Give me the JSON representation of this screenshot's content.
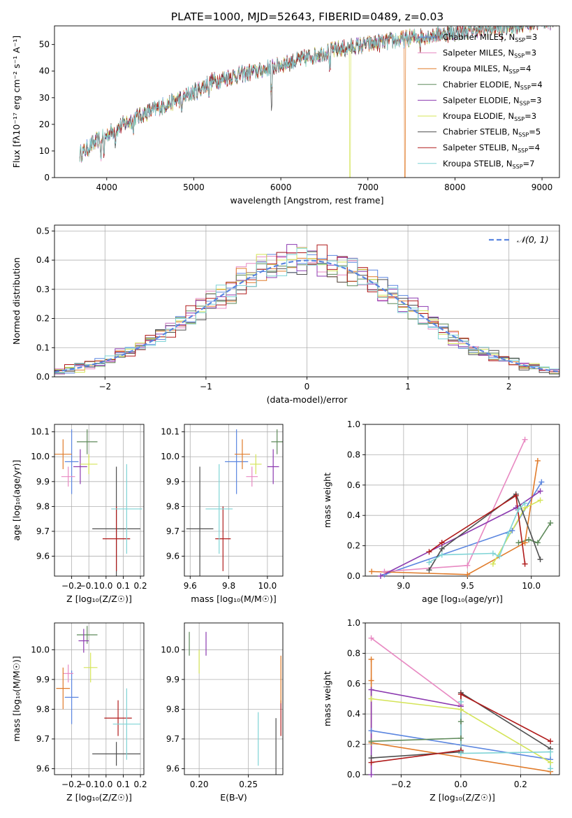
{
  "figure": {
    "title": "PLATE=1000, MJD=52643, FIBERID=0489, z=0.03"
  },
  "colors": {
    "Chabrier MILES": "#5b86e0",
    "Salpeter MILES": "#e889c2",
    "Kroupa MILES": "#e07b2a",
    "Chabrier ELODIE": "#5e8a5a",
    "Salpeter ELODIE": "#8c3ab0",
    "Kroupa ELODIE": "#d4e457",
    "Chabrier STELIB": "#4f4f4f",
    "Salpeter STELIB": "#b01b1b",
    "Kroupa STELIB": "#7fd4d6"
  },
  "chart_data": [
    {
      "id": "spectrum",
      "type": "line",
      "xlabel": "wavelength [Angstrom, rest frame]",
      "ylabel": "Flux [fλ10⁻¹⁷ erg cm⁻² s⁻¹ A⁻¹]",
      "xlim": [
        3400,
        9200
      ],
      "ylim": [
        0,
        57
      ],
      "xticks": [
        4000,
        5000,
        6000,
        7000,
        8000,
        9000
      ],
      "yticks": [
        0,
        10,
        20,
        30,
        40,
        50
      ],
      "grid": false,
      "legend_position": "top-right",
      "continuum": {
        "x": [
          3700,
          3900,
          4050,
          4300,
          4500,
          4800,
          5000,
          5200,
          5500,
          5800,
          6000,
          6300,
          6500,
          6800,
          7000,
          7300,
          7600,
          8000,
          8400,
          8800,
          9000
        ],
        "y": [
          9,
          14,
          17,
          22,
          25,
          29,
          32,
          36,
          38.5,
          40.5,
          42.5,
          45,
          47,
          49,
          50,
          51.5,
          53,
          54.5,
          56,
          57.5,
          59
        ]
      },
      "series": [
        {
          "name": "Chabrier MILES",
          "label": "Chabrier MILES, N",
          "sub": "SSP",
          "suffix": "=3",
          "color": "#5b86e0"
        },
        {
          "name": "Salpeter MILES",
          "label": "Salpeter MILES, N",
          "sub": "SSP",
          "suffix": "=3",
          "color": "#e889c2"
        },
        {
          "name": "Kroupa MILES",
          "label": "Kroupa MILES, N",
          "sub": "SSP",
          "suffix": "=4",
          "color": "#e07b2a"
        },
        {
          "name": "Chabrier ELODIE",
          "label": "Chabrier ELODIE, N",
          "sub": "SSP",
          "suffix": "=4",
          "color": "#5e8a5a"
        },
        {
          "name": "Salpeter ELODIE",
          "label": "Salpeter ELODIE, N",
          "sub": "SSP",
          "suffix": "=3",
          "color": "#8c3ab0"
        },
        {
          "name": "Kroupa ELODIE",
          "label": "Kroupa ELODIE, N",
          "sub": "SSP",
          "suffix": "=3",
          "color": "#d4e457"
        },
        {
          "name": "Chabrier STELIB",
          "label": "Chabrier STELIB, N",
          "sub": "SSP",
          "suffix": "=5",
          "color": "#4f4f4f"
        },
        {
          "name": "Salpeter STELIB",
          "label": "Salpeter STELIB, N",
          "sub": "SSP",
          "suffix": "=4",
          "color": "#b01b1b"
        },
        {
          "name": "Kroupa STELIB",
          "label": "Kroupa STELIB, N",
          "sub": "SSP",
          "suffix": "=7",
          "color": "#7fd4d6"
        }
      ]
    },
    {
      "id": "residuals",
      "type": "histogram",
      "xlabel": "(data-model)/error",
      "ylabel": "Normed distribution",
      "xlim": [
        -2.5,
        2.5
      ],
      "ylim": [
        0,
        0.52
      ],
      "xticks": [
        -2,
        -1,
        0,
        1,
        2
      ],
      "yticks": [
        0.0,
        0.1,
        0.2,
        0.3,
        0.4,
        0.5
      ],
      "grid": true,
      "legend_position": "top-right",
      "reference_curve": {
        "label": "𝒩(0, 1)",
        "mean": 0,
        "sigma": 1,
        "color": "#5b86e0"
      },
      "bins": {
        "start": -2.5,
        "width": 0.1,
        "count": 50
      }
    },
    {
      "id": "age-vs-Z",
      "type": "scatter",
      "xlabel": "Z [log₁₀(Z/Z☉)]",
      "ylabel": "age  [log₁₀(age/yr)]",
      "xlim": [
        -0.3,
        0.22
      ],
      "ylim": [
        9.52,
        10.13
      ],
      "xticks": [
        -0.2,
        -0.1,
        0.0,
        0.1,
        0.2
      ],
      "yticks": [
        9.6,
        9.7,
        9.8,
        9.9,
        10.0,
        10.1
      ],
      "grid": true,
      "points": [
        {
          "series": "Chabrier MILES",
          "x": -0.2,
          "y": 9.98,
          "xerr": 0.04,
          "yerr": 0.13
        },
        {
          "series": "Salpeter MILES",
          "x": -0.22,
          "y": 9.92,
          "xerr": 0.04,
          "yerr": 0.04
        },
        {
          "series": "Kroupa MILES",
          "x": -0.25,
          "y": 10.01,
          "xerr": 0.05,
          "yerr": 0.06
        },
        {
          "series": "Chabrier ELODIE",
          "x": -0.11,
          "y": 10.06,
          "xerr": 0.06,
          "yerr": 0.05
        },
        {
          "series": "Salpeter ELODIE",
          "x": -0.15,
          "y": 9.96,
          "xerr": 0.04,
          "yerr": 0.07
        },
        {
          "series": "Kroupa ELODIE",
          "x": -0.1,
          "y": 9.97,
          "xerr": 0.05,
          "yerr": 0.04
        },
        {
          "series": "Chabrier STELIB",
          "x": 0.06,
          "y": 9.71,
          "xerr": 0.14,
          "yerr": 0.25
        },
        {
          "series": "Salpeter STELIB",
          "x": 0.06,
          "y": 9.67,
          "xerr": 0.08,
          "yerr": 0.13
        },
        {
          "series": "Kroupa STELIB",
          "x": 0.12,
          "y": 9.79,
          "xerr": 0.09,
          "yerr": 0.18
        }
      ]
    },
    {
      "id": "age-vs-mass",
      "type": "scatter",
      "xlabel": "mass [log₁₀(M/M☉)]",
      "ylabel": "",
      "xlim": [
        9.57,
        10.08
      ],
      "ylim": [
        9.52,
        10.13
      ],
      "xticks": [
        9.6,
        9.8,
        10.0
      ],
      "yticks": [
        9.6,
        9.7,
        9.8,
        9.9,
        10.0,
        10.1
      ],
      "grid": true,
      "points": [
        {
          "series": "Chabrier MILES",
          "x": 9.84,
          "y": 9.98,
          "xerr": 0.06,
          "yerr": 0.13
        },
        {
          "series": "Salpeter MILES",
          "x": 9.92,
          "y": 9.92,
          "xerr": 0.03,
          "yerr": 0.04
        },
        {
          "series": "Kroupa MILES",
          "x": 9.87,
          "y": 10.01,
          "xerr": 0.04,
          "yerr": 0.06
        },
        {
          "series": "Chabrier ELODIE",
          "x": 10.05,
          "y": 10.06,
          "xerr": 0.03,
          "yerr": 0.05
        },
        {
          "series": "Salpeter ELODIE",
          "x": 10.03,
          "y": 9.96,
          "xerr": 0.03,
          "yerr": 0.07
        },
        {
          "series": "Kroupa ELODIE",
          "x": 9.94,
          "y": 9.97,
          "xerr": 0.03,
          "yerr": 0.04
        },
        {
          "series": "Chabrier STELIB",
          "x": 9.65,
          "y": 9.71,
          "xerr": 0.07,
          "yerr": 0.25
        },
        {
          "series": "Salpeter STELIB",
          "x": 9.77,
          "y": 9.67,
          "xerr": 0.04,
          "yerr": 0.13
        },
        {
          "series": "Kroupa STELIB",
          "x": 9.75,
          "y": 9.79,
          "xerr": 0.07,
          "yerr": 0.18
        }
      ]
    },
    {
      "id": "mass-weight-vs-age",
      "type": "line",
      "xlabel": "age  [log₁₀(age/yr)]",
      "ylabel": "mass weight",
      "xlim": [
        8.7,
        10.22
      ],
      "ylim": [
        0.0,
        1.0
      ],
      "xticks": [
        9.0,
        9.5,
        10.0
      ],
      "yticks": [
        0.0,
        0.2,
        0.4,
        0.6,
        0.8,
        1.0
      ],
      "grid": true,
      "series": [
        {
          "name": "Chabrier MILES",
          "x": [
            8.85,
            9.85,
            10.08
          ],
          "y": [
            0.01,
            0.3,
            0.62
          ]
        },
        {
          "name": "Salpeter MILES",
          "x": [
            8.85,
            9.5,
            9.95
          ],
          "y": [
            0.03,
            0.07,
            0.9
          ]
        },
        {
          "name": "Kroupa MILES",
          "x": [
            8.75,
            9.5,
            9.95,
            10.05
          ],
          "y": [
            0.03,
            0.01,
            0.22,
            0.76
          ]
        },
        {
          "name": "Chabrier ELODIE",
          "x": [
            9.9,
            9.98,
            10.05,
            10.15
          ],
          "y": [
            0.22,
            0.24,
            0.22,
            0.35
          ]
        },
        {
          "name": "Salpeter ELODIE",
          "x": [
            8.82,
            9.88,
            10.07
          ],
          "y": [
            0.0,
            0.45,
            0.56
          ]
        },
        {
          "name": "Kroupa ELODIE",
          "x": [
            9.7,
            9.95,
            10.07
          ],
          "y": [
            0.08,
            0.45,
            0.5
          ]
        },
        {
          "name": "Chabrier STELIB",
          "x": [
            9.2,
            9.3,
            9.88,
            10.07
          ],
          "y": [
            0.04,
            0.18,
            0.54,
            0.11
          ]
        },
        {
          "name": "Salpeter STELIB",
          "x": [
            9.2,
            9.3,
            9.88,
            9.95
          ],
          "y": [
            0.16,
            0.22,
            0.53,
            0.08
          ]
        },
        {
          "name": "Kroupa STELIB",
          "x": [
            9.2,
            9.3,
            9.7,
            9.75,
            9.82,
            9.9,
            9.95
          ],
          "y": [
            0.09,
            0.14,
            0.15,
            0.13,
            0.28,
            0.44,
            0.48
          ]
        }
      ]
    },
    {
      "id": "mass-vs-Z",
      "type": "scatter",
      "xlabel": "Z [log₁₀(Z/Z☉)]",
      "ylabel": "mass [log₁₀(M/M☉)]",
      "xlim": [
        -0.3,
        0.22
      ],
      "ylim": [
        9.58,
        10.09
      ],
      "xticks": [
        -0.2,
        -0.1,
        0.0,
        0.1,
        0.2
      ],
      "yticks": [
        9.6,
        9.7,
        9.8,
        9.9,
        10.0
      ],
      "grid": true,
      "points": [
        {
          "series": "Chabrier MILES",
          "x": -0.2,
          "y": 9.84,
          "xerr": 0.04,
          "yerr": 0.09
        },
        {
          "series": "Salpeter MILES",
          "x": -0.22,
          "y": 9.92,
          "xerr": 0.03,
          "yerr": 0.03
        },
        {
          "series": "Kroupa MILES",
          "x": -0.25,
          "y": 9.87,
          "xerr": 0.04,
          "yerr": 0.07
        },
        {
          "series": "Chabrier ELODIE",
          "x": -0.11,
          "y": 10.05,
          "xerr": 0.06,
          "yerr": 0.03
        },
        {
          "series": "Salpeter ELODIE",
          "x": -0.13,
          "y": 10.03,
          "xerr": 0.03,
          "yerr": 0.04
        },
        {
          "series": "Kroupa ELODIE",
          "x": -0.09,
          "y": 9.94,
          "xerr": 0.04,
          "yerr": 0.05
        },
        {
          "series": "Chabrier STELIB",
          "x": 0.06,
          "y": 9.65,
          "xerr": 0.14,
          "yerr": 0.04
        },
        {
          "series": "Salpeter STELIB",
          "x": 0.07,
          "y": 9.77,
          "xerr": 0.08,
          "yerr": 0.06
        },
        {
          "series": "Kroupa STELIB",
          "x": 0.12,
          "y": 9.75,
          "xerr": 0.08,
          "yerr": 0.12
        }
      ]
    },
    {
      "id": "EBV",
      "type": "scatter",
      "xlabel": "E(B-V)",
      "ylabel": "",
      "xlim": [
        0.185,
        0.285
      ],
      "ylim": [
        9.58,
        10.09
      ],
      "xticks": [
        0.2,
        0.25
      ],
      "yticks": [
        9.6,
        9.7,
        9.8,
        9.9,
        10.0
      ],
      "grid": true,
      "points": [
        {
          "series": "Chabrier ELODIE",
          "x": 0.19,
          "y": 10.02,
          "xerr": 0.0,
          "yerr": 0.04
        },
        {
          "series": "Salpeter ELODIE",
          "x": 0.207,
          "y": 10.02,
          "xerr": 0.0,
          "yerr": 0.04
        },
        {
          "series": "Kroupa ELODIE",
          "x": 0.2,
          "y": 9.96,
          "xerr": 0.0,
          "yerr": 0.04
        },
        {
          "series": "Chabrier STELIB",
          "x": 0.278,
          "y": 9.67,
          "xerr": 0.0,
          "yerr": 0.1
        },
        {
          "series": "Salpeter STELIB",
          "x": 0.283,
          "y": 9.77,
          "xerr": 0.0,
          "yerr": 0.06
        },
        {
          "series": "Kroupa STELIB",
          "x": 0.26,
          "y": 9.7,
          "xerr": 0.0,
          "yerr": 0.09
        },
        {
          "series": "Kroupa MILES",
          "x": 0.283,
          "y": 9.9,
          "xerr": 0.0,
          "yerr": 0.08
        }
      ]
    },
    {
      "id": "mass-weight-vs-Z",
      "type": "line",
      "xlabel": "Z [log₁₀(Z/Z☉)]",
      "ylabel": "mass weight",
      "xlim": [
        -0.32,
        0.33
      ],
      "ylim": [
        0.0,
        1.0
      ],
      "xticks": [
        -0.2,
        0.0,
        0.2
      ],
      "yticks": [
        0.0,
        0.2,
        0.4,
        0.6,
        0.8,
        1.0
      ],
      "grid": true,
      "series": [
        {
          "name": "Chabrier MILES",
          "x": [
            -0.3,
            0.3
          ],
          "y": [
            0.29,
            0.1
          ]
        },
        {
          "name": "Salpeter MILES",
          "x": [
            -0.3,
            0.0
          ],
          "y": [
            0.9,
            0.46
          ]
        },
        {
          "name": "Kroupa MILES",
          "x": [
            -0.3,
            -0.3,
            -0.3,
            0.3
          ],
          "y": [
            0.76,
            0.62,
            0.21,
            0.02
          ]
        },
        {
          "name": "Chabrier ELODIE",
          "x": [
            -0.3,
            0.0,
            0.0
          ],
          "y": [
            0.22,
            0.24,
            0.35
          ]
        },
        {
          "name": "Salpeter ELODIE",
          "x": [
            -0.3,
            -0.3,
            0.0,
            0.0
          ],
          "y": [
            0.0,
            0.56,
            0.45,
            0.45
          ]
        },
        {
          "name": "Kroupa ELODIE",
          "x": [
            -0.3,
            0.0,
            0.3
          ],
          "y": [
            0.5,
            0.43,
            0.08
          ]
        },
        {
          "name": "Chabrier STELIB",
          "x": [
            -0.3,
            0.0,
            0.0,
            0.3
          ],
          "y": [
            0.11,
            0.15,
            0.54,
            0.17
          ]
        },
        {
          "name": "Salpeter STELIB",
          "x": [
            -0.3,
            0.0,
            0.0,
            0.3
          ],
          "y": [
            0.08,
            0.16,
            0.53,
            0.22
          ]
        },
        {
          "name": "Kroupa STELIB",
          "x": [
            0.0,
            0.0,
            0.3,
            0.3
          ],
          "y": [
            0.48,
            0.14,
            0.15,
            0.04
          ]
        }
      ]
    }
  ]
}
